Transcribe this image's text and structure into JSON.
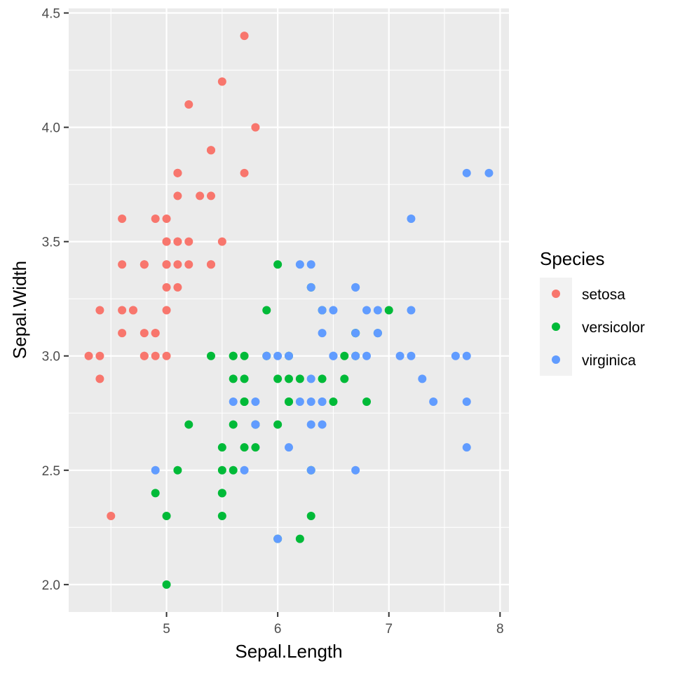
{
  "chart_data": {
    "type": "scatter",
    "xlabel": "Sepal.Length",
    "ylabel": "Sepal.Width",
    "xlim": [
      4.12,
      8.08
    ],
    "ylim": [
      1.88,
      4.52
    ],
    "x_ticks": [
      5,
      6,
      7,
      8
    ],
    "x_tick_labels": [
      "5",
      "6",
      "7",
      "8"
    ],
    "x_minor_ticks": [
      4.5,
      5.5,
      6.5,
      7.5
    ],
    "y_ticks": [
      2.0,
      2.5,
      3.0,
      3.5,
      4.0,
      4.5
    ],
    "y_tick_labels": [
      "2.0",
      "2.5",
      "3.0",
      "3.5",
      "4.0",
      "4.5"
    ],
    "y_minor_ticks": [
      2.25,
      2.75,
      3.25,
      3.75,
      4.25
    ],
    "grid": true,
    "legend": {
      "title": "Species",
      "position": "right",
      "entries": [
        "setosa",
        "versicolor",
        "virginica"
      ]
    },
    "colors": {
      "setosa": "#F8766D",
      "versicolor": "#00BA38",
      "virginica": "#619CFF",
      "panel": "#EBEBEB",
      "grid": "#FFFFFF"
    },
    "series": [
      {
        "name": "setosa",
        "points": [
          [
            5.1,
            3.5
          ],
          [
            4.9,
            3.0
          ],
          [
            4.7,
            3.2
          ],
          [
            4.6,
            3.1
          ],
          [
            5.0,
            3.6
          ],
          [
            5.4,
            3.9
          ],
          [
            4.6,
            3.4
          ],
          [
            5.0,
            3.4
          ],
          [
            4.4,
            2.9
          ],
          [
            4.9,
            3.1
          ],
          [
            5.4,
            3.7
          ],
          [
            4.8,
            3.4
          ],
          [
            4.8,
            3.0
          ],
          [
            4.3,
            3.0
          ],
          [
            5.8,
            4.0
          ],
          [
            5.7,
            4.4
          ],
          [
            5.4,
            3.9
          ],
          [
            5.1,
            3.5
          ],
          [
            5.7,
            3.8
          ],
          [
            5.1,
            3.8
          ],
          [
            5.4,
            3.4
          ],
          [
            5.1,
            3.7
          ],
          [
            4.6,
            3.6
          ],
          [
            5.1,
            3.3
          ],
          [
            4.8,
            3.4
          ],
          [
            5.0,
            3.0
          ],
          [
            5.0,
            3.4
          ],
          [
            5.2,
            3.5
          ],
          [
            5.2,
            3.4
          ],
          [
            4.7,
            3.2
          ],
          [
            4.8,
            3.1
          ],
          [
            5.4,
            3.4
          ],
          [
            5.2,
            4.1
          ],
          [
            5.5,
            4.2
          ],
          [
            4.9,
            3.1
          ],
          [
            5.0,
            3.2
          ],
          [
            5.5,
            3.5
          ],
          [
            4.9,
            3.6
          ],
          [
            4.4,
            3.0
          ],
          [
            5.1,
            3.4
          ],
          [
            5.0,
            3.5
          ],
          [
            4.5,
            2.3
          ],
          [
            4.4,
            3.2
          ],
          [
            5.0,
            3.5
          ],
          [
            5.1,
            3.8
          ],
          [
            4.8,
            3.0
          ],
          [
            5.1,
            3.8
          ],
          [
            4.6,
            3.2
          ],
          [
            5.3,
            3.7
          ],
          [
            5.0,
            3.3
          ]
        ]
      },
      {
        "name": "versicolor",
        "points": [
          [
            7.0,
            3.2
          ],
          [
            6.4,
            3.2
          ],
          [
            6.9,
            3.1
          ],
          [
            5.5,
            2.3
          ],
          [
            6.5,
            2.8
          ],
          [
            5.7,
            2.8
          ],
          [
            6.3,
            3.3
          ],
          [
            4.9,
            2.4
          ],
          [
            6.6,
            2.9
          ],
          [
            5.2,
            2.7
          ],
          [
            5.0,
            2.0
          ],
          [
            5.9,
            3.0
          ],
          [
            6.0,
            2.2
          ],
          [
            6.1,
            2.9
          ],
          [
            5.6,
            2.9
          ],
          [
            6.7,
            3.1
          ],
          [
            5.6,
            3.0
          ],
          [
            5.8,
            2.7
          ],
          [
            6.2,
            2.2
          ],
          [
            5.6,
            2.5
          ],
          [
            5.9,
            3.2
          ],
          [
            6.1,
            2.8
          ],
          [
            6.3,
            2.5
          ],
          [
            6.1,
            2.8
          ],
          [
            6.4,
            2.9
          ],
          [
            6.6,
            3.0
          ],
          [
            6.8,
            2.8
          ],
          [
            6.7,
            3.0
          ],
          [
            6.0,
            2.9
          ],
          [
            5.7,
            2.6
          ],
          [
            5.5,
            2.4
          ],
          [
            5.5,
            2.4
          ],
          [
            5.8,
            2.7
          ],
          [
            6.0,
            2.7
          ],
          [
            5.4,
            3.0
          ],
          [
            6.0,
            3.4
          ],
          [
            6.7,
            3.1
          ],
          [
            6.3,
            2.3
          ],
          [
            5.6,
            3.0
          ],
          [
            5.5,
            2.5
          ],
          [
            5.5,
            2.6
          ],
          [
            6.1,
            3.0
          ],
          [
            5.8,
            2.6
          ],
          [
            5.0,
            2.3
          ],
          [
            5.6,
            2.7
          ],
          [
            5.7,
            3.0
          ],
          [
            5.7,
            2.9
          ],
          [
            6.2,
            2.9
          ],
          [
            5.1,
            2.5
          ],
          [
            5.7,
            2.8
          ]
        ]
      },
      {
        "name": "virginica",
        "points": [
          [
            6.3,
            3.3
          ],
          [
            5.8,
            2.7
          ],
          [
            7.1,
            3.0
          ],
          [
            6.3,
            2.9
          ],
          [
            6.5,
            3.0
          ],
          [
            7.6,
            3.0
          ],
          [
            4.9,
            2.5
          ],
          [
            7.3,
            2.9
          ],
          [
            6.7,
            2.5
          ],
          [
            7.2,
            3.6
          ],
          [
            6.5,
            3.2
          ],
          [
            6.4,
            2.7
          ],
          [
            6.8,
            3.0
          ],
          [
            5.7,
            2.5
          ],
          [
            5.8,
            2.8
          ],
          [
            6.4,
            3.2
          ],
          [
            6.5,
            3.0
          ],
          [
            7.7,
            3.8
          ],
          [
            7.7,
            2.6
          ],
          [
            6.0,
            2.2
          ],
          [
            6.9,
            3.2
          ],
          [
            5.6,
            2.8
          ],
          [
            7.7,
            2.8
          ],
          [
            6.3,
            2.7
          ],
          [
            6.7,
            3.3
          ],
          [
            7.2,
            3.2
          ],
          [
            6.2,
            2.8
          ],
          [
            6.1,
            3.0
          ],
          [
            6.4,
            2.8
          ],
          [
            7.2,
            3.0
          ],
          [
            7.4,
            2.8
          ],
          [
            7.9,
            3.8
          ],
          [
            6.4,
            2.8
          ],
          [
            6.3,
            2.8
          ],
          [
            6.1,
            2.6
          ],
          [
            7.7,
            3.0
          ],
          [
            6.3,
            3.4
          ],
          [
            6.4,
            3.1
          ],
          [
            6.0,
            3.0
          ],
          [
            6.9,
            3.1
          ],
          [
            6.7,
            3.1
          ],
          [
            6.9,
            3.1
          ],
          [
            5.8,
            2.7
          ],
          [
            6.8,
            3.2
          ],
          [
            6.7,
            3.3
          ],
          [
            6.7,
            3.0
          ],
          [
            6.3,
            2.5
          ],
          [
            6.5,
            3.0
          ],
          [
            6.2,
            3.4
          ],
          [
            5.9,
            3.0
          ]
        ]
      }
    ]
  }
}
